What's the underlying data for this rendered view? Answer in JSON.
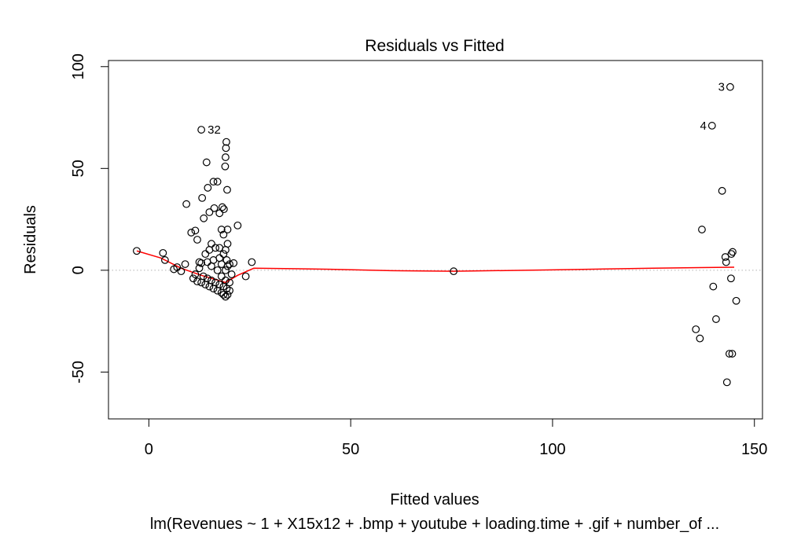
{
  "chart_data": {
    "type": "scatter",
    "title": "Residuals vs Fitted",
    "xlabel": "Fitted values",
    "ylabel": "Residuals",
    "subtitle": "lm(Revenues ~ 1 + X15x12 + .bmp + youtube + loading.time + .gif + number_of ...",
    "xlim": [
      -10,
      152
    ],
    "ylim": [
      -73,
      103
    ],
    "xticks": [
      0,
      50,
      100,
      150
    ],
    "yticks": [
      -50,
      0,
      50,
      100
    ],
    "grid": false,
    "legend": "none",
    "reference_line": {
      "y": 0,
      "style": "dotted",
      "color": "#b3b3b3"
    },
    "point_color": "#000000",
    "smooth_color": "#ff0000",
    "points": [
      {
        "x": -3,
        "y": 9.5
      },
      {
        "x": 3.5,
        "y": 8.5
      },
      {
        "x": 4,
        "y": 5
      },
      {
        "x": 6.2,
        "y": 0.5
      },
      {
        "x": 7,
        "y": 1.5
      },
      {
        "x": 8,
        "y": -0.5
      },
      {
        "x": 9,
        "y": 3
      },
      {
        "x": 9.3,
        "y": 32.5
      },
      {
        "x": 10.5,
        "y": 18.5
      },
      {
        "x": 11.5,
        "y": 19.5
      },
      {
        "x": 12,
        "y": 15
      },
      {
        "x": 12.5,
        "y": 4
      },
      {
        "x": 13.2,
        "y": 35.5
      },
      {
        "x": 13.6,
        "y": 25.5
      },
      {
        "x": 14.3,
        "y": 53
      },
      {
        "x": 14.6,
        "y": 40.5
      },
      {
        "x": 15,
        "y": 28.5
      },
      {
        "x": 15.5,
        "y": 13
      },
      {
        "x": 16,
        "y": 43.5
      },
      {
        "x": 16.2,
        "y": 30.5
      },
      {
        "x": 17,
        "y": 43.5
      },
      {
        "x": 17.5,
        "y": 28
      },
      {
        "x": 18,
        "y": 20
      },
      {
        "x": 18.2,
        "y": 31
      },
      {
        "x": 18.6,
        "y": 30
      },
      {
        "x": 18.9,
        "y": 51
      },
      {
        "x": 19,
        "y": 55.5
      },
      {
        "x": 19.1,
        "y": 60
      },
      {
        "x": 19.2,
        "y": 63
      },
      {
        "x": 19.4,
        "y": 39.5
      },
      {
        "x": 19.5,
        "y": 20
      },
      {
        "x": 22,
        "y": 22
      },
      {
        "x": 24,
        "y": -3
      },
      {
        "x": 25.5,
        "y": 4
      },
      {
        "x": 11,
        "y": -4
      },
      {
        "x": 11.5,
        "y": -2
      },
      {
        "x": 12,
        "y": -5.5
      },
      {
        "x": 12.5,
        "y": 1
      },
      {
        "x": 13,
        "y": -6
      },
      {
        "x": 13,
        "y": 3.5
      },
      {
        "x": 13.5,
        "y": -3
      },
      {
        "x": 14,
        "y": -7
      },
      {
        "x": 14,
        "y": 8
      },
      {
        "x": 14.5,
        "y": -4
      },
      {
        "x": 14.5,
        "y": 4
      },
      {
        "x": 15,
        "y": -8
      },
      {
        "x": 15,
        "y": 10
      },
      {
        "x": 15.5,
        "y": -5
      },
      {
        "x": 15.5,
        "y": 2
      },
      {
        "x": 16,
        "y": -9
      },
      {
        "x": 16,
        "y": 5
      },
      {
        "x": 16.5,
        "y": -6
      },
      {
        "x": 16.5,
        "y": 11
      },
      {
        "x": 17,
        "y": -10
      },
      {
        "x": 17,
        "y": 0
      },
      {
        "x": 17.5,
        "y": -7
      },
      {
        "x": 17.5,
        "y": 6
      },
      {
        "x": 17.5,
        "y": 11
      },
      {
        "x": 18,
        "y": -11
      },
      {
        "x": 18,
        "y": -3
      },
      {
        "x": 18,
        "y": 3
      },
      {
        "x": 18.5,
        "y": -12
      },
      {
        "x": 18.5,
        "y": -8
      },
      {
        "x": 18.5,
        "y": 8
      },
      {
        "x": 18.5,
        "y": 17.5
      },
      {
        "x": 19,
        "y": -13
      },
      {
        "x": 19,
        "y": -5
      },
      {
        "x": 19,
        "y": 0
      },
      {
        "x": 19,
        "y": 10
      },
      {
        "x": 19.3,
        "y": -9
      },
      {
        "x": 19.3,
        "y": 5
      },
      {
        "x": 19.5,
        "y": -12
      },
      {
        "x": 19.5,
        "y": 2
      },
      {
        "x": 19.5,
        "y": 13
      },
      {
        "x": 20,
        "y": -10
      },
      {
        "x": 20,
        "y": -6
      },
      {
        "x": 20,
        "y": 3
      },
      {
        "x": 20.5,
        "y": -2
      },
      {
        "x": 21,
        "y": 3.5
      },
      {
        "x": 75.5,
        "y": -0.5
      },
      {
        "x": 135.5,
        "y": -29
      },
      {
        "x": 136.5,
        "y": -33.5
      },
      {
        "x": 137,
        "y": 20
      },
      {
        "x": 139.8,
        "y": -8
      },
      {
        "x": 140.5,
        "y": -24
      },
      {
        "x": 142,
        "y": 39
      },
      {
        "x": 142.8,
        "y": 6.5
      },
      {
        "x": 143,
        "y": 4
      },
      {
        "x": 143.2,
        "y": -55
      },
      {
        "x": 143.8,
        "y": -41
      },
      {
        "x": 144.5,
        "y": -41
      },
      {
        "x": 144.2,
        "y": -4
      },
      {
        "x": 144.3,
        "y": 8
      },
      {
        "x": 144.6,
        "y": 9
      },
      {
        "x": 145.5,
        "y": -15
      },
      {
        "x": 13,
        "y": 69
      },
      {
        "x": 139.5,
        "y": 71
      },
      {
        "x": 144,
        "y": 90
      }
    ],
    "labeled_points": [
      {
        "label": "32",
        "x": 13,
        "y": 69
      },
      {
        "label": "4",
        "x": 139.5,
        "y": 71
      },
      {
        "label": "3",
        "x": 144,
        "y": 90
      }
    ],
    "smooth_line": [
      {
        "x": -3,
        "y": 9.5
      },
      {
        "x": 3,
        "y": 6
      },
      {
        "x": 8,
        "y": 1
      },
      {
        "x": 13,
        "y": -2.5
      },
      {
        "x": 19,
        "y": -6
      },
      {
        "x": 22,
        "y": -2.5
      },
      {
        "x": 26,
        "y": 1
      },
      {
        "x": 45,
        "y": 0.5
      },
      {
        "x": 60,
        "y": -0.2
      },
      {
        "x": 75.5,
        "y": -0.5
      },
      {
        "x": 100,
        "y": 0.2
      },
      {
        "x": 125,
        "y": 1
      },
      {
        "x": 145,
        "y": 1.5
      }
    ]
  }
}
